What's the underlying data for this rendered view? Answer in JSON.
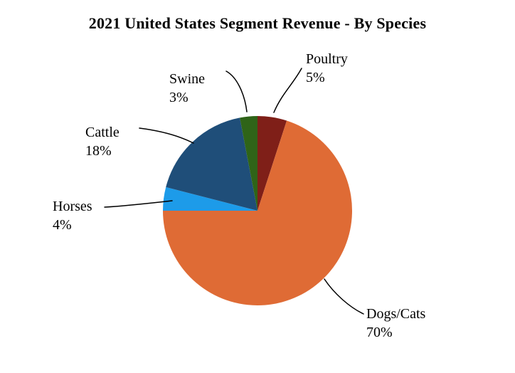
{
  "chart_data": {
    "type": "pie",
    "title": "2021 United States Segment Revenue - By Species",
    "direction": "clockwise",
    "start_angle_deg": 0,
    "legend_position": "none",
    "slices": [
      {
        "label": "Poultry",
        "value": 5,
        "pct_text": "5%",
        "color": "#7F1F18"
      },
      {
        "label": "Dogs/Cats",
        "value": 70,
        "pct_text": "70%",
        "color": "#DF6B35"
      },
      {
        "label": "Horses",
        "value": 4,
        "pct_text": "4%",
        "color": "#1D9BE9"
      },
      {
        "label": "Cattle",
        "value": 18,
        "pct_text": "18%",
        "color": "#1F4E79"
      },
      {
        "label": "Swine",
        "value": 3,
        "pct_text": "3%",
        "color": "#2F6418"
      }
    ]
  }
}
